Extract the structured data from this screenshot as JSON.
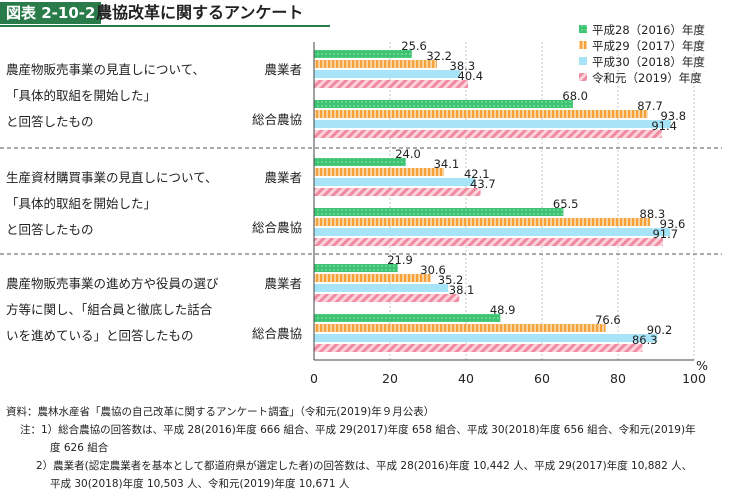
{
  "header": {
    "badge": "図表 2-10-2",
    "title": "農協改革に関するアンケート"
  },
  "chart_data": {
    "type": "bar",
    "orientation": "horizontal",
    "xlim": [
      0,
      100
    ],
    "xticks": [
      "0",
      "20",
      "40",
      "60",
      "80",
      "100"
    ],
    "unit": "%",
    "legend_position": "top-right",
    "series": [
      {
        "name": "平成28（2016）年度",
        "color": "#3cc472",
        "pattern": "dots"
      },
      {
        "name": "平成29（2017）年度",
        "color": "#f5a23c",
        "pattern": "vertical-stripes"
      },
      {
        "name": "平成30（2018）年度",
        "color": "#a8e4f7",
        "pattern": "solid"
      },
      {
        "name": "令和元（2019）年度",
        "color": "#f08aa0",
        "pattern": "diagonal-stripes"
      }
    ],
    "groups": [
      {
        "label_lines": [
          "農産物販売事業の見直しについて、",
          "「具体的取組を開始した」",
          "と回答したもの"
        ],
        "rows": [
          {
            "org": "農業者",
            "values": [
              25.6,
              32.2,
              38.3,
              40.4
            ],
            "labels": [
              "25.6",
              "32.2",
              "38.3",
              "40.4"
            ]
          },
          {
            "org": "総合農協",
            "values": [
              68.0,
              87.7,
              93.8,
              91.4
            ],
            "labels": [
              "68.0",
              "87.7",
              "93.8",
              "91.4"
            ]
          }
        ]
      },
      {
        "label_lines": [
          "生産資材購買事業の見直しについて、",
          "「具体的取組を開始した」",
          "と回答したもの"
        ],
        "rows": [
          {
            "org": "農業者",
            "values": [
              24.0,
              34.1,
              42.1,
              43.7
            ],
            "labels": [
              "24.0",
              "34.1",
              "42.1",
              "43.7"
            ]
          },
          {
            "org": "総合農協",
            "values": [
              65.5,
              88.3,
              93.6,
              91.7
            ],
            "labels": [
              "65.5",
              "88.3",
              "93.6",
              "91.7"
            ]
          }
        ]
      },
      {
        "label_lines": [
          "農産物販売事業の進め方や役員の選び",
          "方等に関し、「組合員と徹底した話合",
          "いを進めている」と回答したもの"
        ],
        "rows": [
          {
            "org": "農業者",
            "values": [
              21.9,
              30.6,
              35.2,
              38.1
            ],
            "labels": [
              "21.9",
              "30.6",
              "35.2",
              "38.1"
            ]
          },
          {
            "org": "総合農協",
            "values": [
              48.9,
              76.6,
              90.2,
              86.3
            ],
            "labels": [
              "48.9",
              "76.6",
              "90.2",
              "86.3"
            ]
          }
        ]
      }
    ]
  },
  "notes": {
    "source": "資料：農林水産省「農協の自己改革に関するアンケート調査」（令和元(2019)年９月公表）",
    "note1_line1": "注：1）総合農協の回答数は、平成 28(2016)年度 666 組合、平成 29(2017)年度 658 組合、平成 30(2018)年度 656 組合、令和元(2019)年",
    "note1_line2": "度 626 組合",
    "note2_line1": "2）農業者(認定農業者を基本として都道府県が選定した者)の回答数は、平成 28(2016)年度 10,442 人、平成 29(2017)年度 10,882 人、",
    "note2_line2": "平成 30(2018)年度 10,503 人、令和元(2019)年度 10,671 人"
  }
}
